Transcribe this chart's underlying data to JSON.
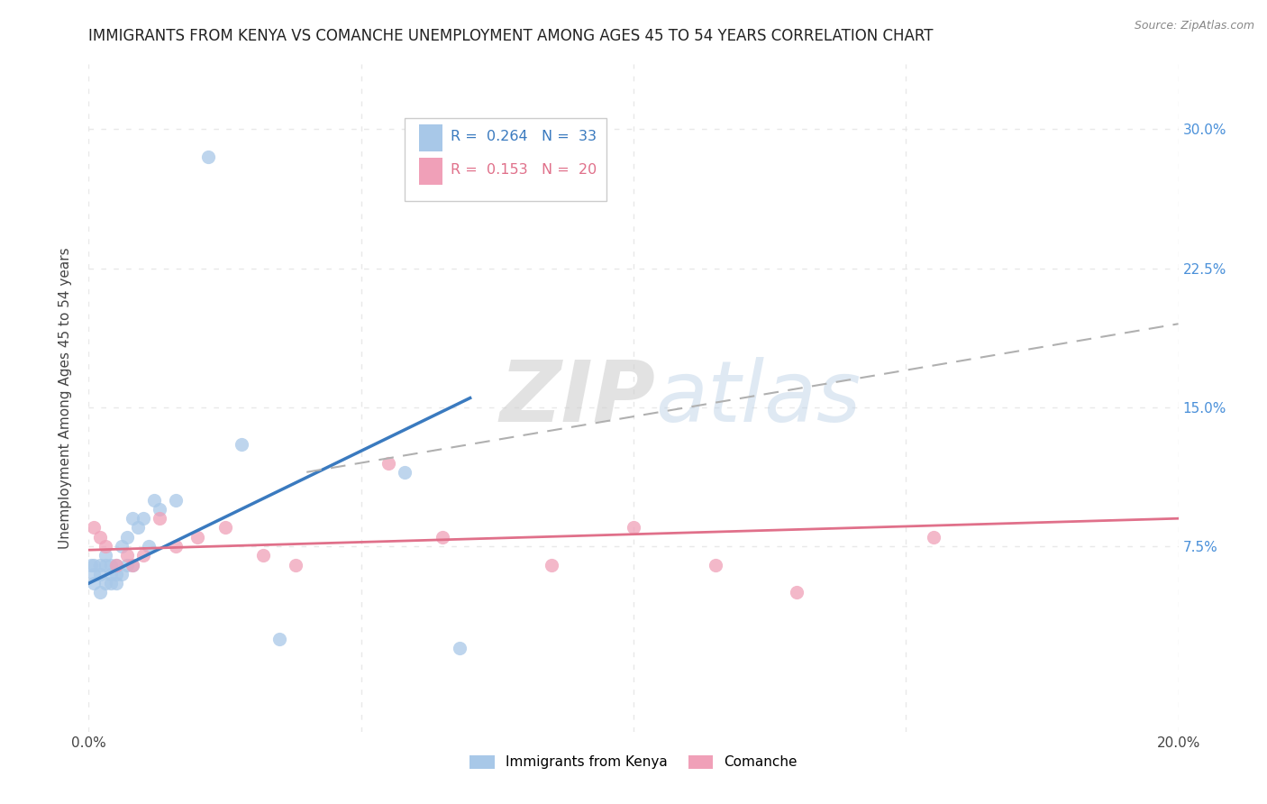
{
  "title": "IMMIGRANTS FROM KENYA VS COMANCHE UNEMPLOYMENT AMONG AGES 45 TO 54 YEARS CORRELATION CHART",
  "source": "Source: ZipAtlas.com",
  "ylabel": "Unemployment Among Ages 45 to 54 years",
  "xlim": [
    0.0,
    0.2
  ],
  "ylim": [
    -0.025,
    0.335
  ],
  "yticks": [
    0.0,
    0.075,
    0.15,
    0.225,
    0.3
  ],
  "ytick_labels": [
    "",
    "7.5%",
    "15.0%",
    "22.5%",
    "30.0%"
  ],
  "xticks": [
    0.0,
    0.05,
    0.1,
    0.15,
    0.2
  ],
  "xtick_labels": [
    "0.0%",
    "",
    "",
    "",
    "20.0%"
  ],
  "legend1_r": "0.264",
  "legend1_n": "33",
  "legend2_r": "0.153",
  "legend2_n": "20",
  "legend_label1": "Immigrants from Kenya",
  "legend_label2": "Comanche",
  "color_blue": "#a8c8e8",
  "color_pink": "#f0a0b8",
  "color_blue_line": "#3a7abf",
  "color_pink_line": "#e0708a",
  "color_dash": "#b0b0b0",
  "watermark_zip": "ZIP",
  "watermark_atlas": "atlas",
  "kenya_scatter_x": [
    0.0005,
    0.001,
    0.001,
    0.001,
    0.002,
    0.002,
    0.002,
    0.003,
    0.003,
    0.003,
    0.004,
    0.004,
    0.004,
    0.005,
    0.005,
    0.005,
    0.006,
    0.006,
    0.007,
    0.007,
    0.008,
    0.008,
    0.009,
    0.01,
    0.011,
    0.012,
    0.013,
    0.016,
    0.022,
    0.028,
    0.035,
    0.058,
    0.068
  ],
  "kenya_scatter_y": [
    0.065,
    0.055,
    0.06,
    0.065,
    0.05,
    0.06,
    0.065,
    0.055,
    0.065,
    0.07,
    0.055,
    0.06,
    0.065,
    0.055,
    0.06,
    0.065,
    0.06,
    0.075,
    0.065,
    0.08,
    0.065,
    0.09,
    0.085,
    0.09,
    0.075,
    0.1,
    0.095,
    0.1,
    0.285,
    0.13,
    0.025,
    0.115,
    0.02
  ],
  "comanche_scatter_x": [
    0.001,
    0.002,
    0.003,
    0.005,
    0.007,
    0.008,
    0.01,
    0.013,
    0.016,
    0.02,
    0.025,
    0.032,
    0.038,
    0.055,
    0.065,
    0.085,
    0.1,
    0.115,
    0.13,
    0.155
  ],
  "comanche_scatter_y": [
    0.085,
    0.08,
    0.075,
    0.065,
    0.07,
    0.065,
    0.07,
    0.09,
    0.075,
    0.08,
    0.085,
    0.07,
    0.065,
    0.12,
    0.08,
    0.065,
    0.085,
    0.065,
    0.05,
    0.08
  ],
  "kenya_trend_x0": 0.0,
  "kenya_trend_y0": 0.055,
  "kenya_trend_x1": 0.07,
  "kenya_trend_y1": 0.155,
  "comanche_trend_x0": 0.0,
  "comanche_trend_y0": 0.073,
  "comanche_trend_x1": 0.2,
  "comanche_trend_y1": 0.09,
  "dash_trend_x0": 0.04,
  "dash_trend_y0": 0.115,
  "dash_trend_x1": 0.2,
  "dash_trend_y1": 0.195,
  "grid_color": "#e8e8e8",
  "background_color": "#ffffff",
  "title_fontsize": 12,
  "axis_label_fontsize": 11,
  "tick_fontsize": 11,
  "right_tick_color": "#4a90d9"
}
